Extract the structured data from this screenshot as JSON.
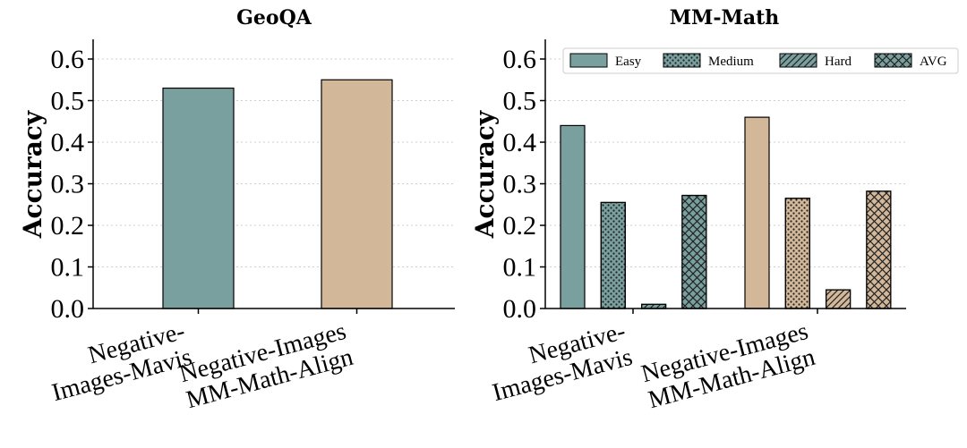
{
  "colors": {
    "teal": "#7a9f9f",
    "tan": "#d2b899"
  },
  "chart_data": [
    {
      "type": "bar",
      "title": "GeoQA",
      "xlabel": "",
      "ylabel": "Accuracy",
      "ylim": [
        0,
        0.65
      ],
      "yticks": [
        "0.0",
        "0.1",
        "0.2",
        "0.3",
        "0.4",
        "0.5",
        "0.6"
      ],
      "grid": true,
      "categories": [
        [
          "Negative-",
          "Images-Mavis"
        ],
        [
          "Negative-Images",
          "MM-Math-Align"
        ]
      ],
      "values": [
        0.53,
        0.55
      ]
    },
    {
      "type": "bar",
      "title": "MM-Math",
      "xlabel": "",
      "ylabel": "Accuracy",
      "ylim": [
        0,
        0.65
      ],
      "yticks": [
        "0.0",
        "0.1",
        "0.2",
        "0.3",
        "0.4",
        "0.5",
        "0.6"
      ],
      "grid": true,
      "legend_position": "top-right",
      "categories": [
        [
          "Negative-",
          "Images-Mavis"
        ],
        [
          "Negative-Images",
          "MM-Math-Align"
        ]
      ],
      "series": [
        {
          "name": "Easy",
          "pattern": "solid",
          "values": [
            0.44,
            0.46
          ]
        },
        {
          "name": "Medium",
          "pattern": "dots",
          "values": [
            0.255,
            0.265
          ]
        },
        {
          "name": "Hard",
          "pattern": "diagonal",
          "values": [
            0.01,
            0.045
          ]
        },
        {
          "name": "AVG",
          "pattern": "crosshatch",
          "values": [
            0.272,
            0.282
          ]
        }
      ]
    }
  ]
}
